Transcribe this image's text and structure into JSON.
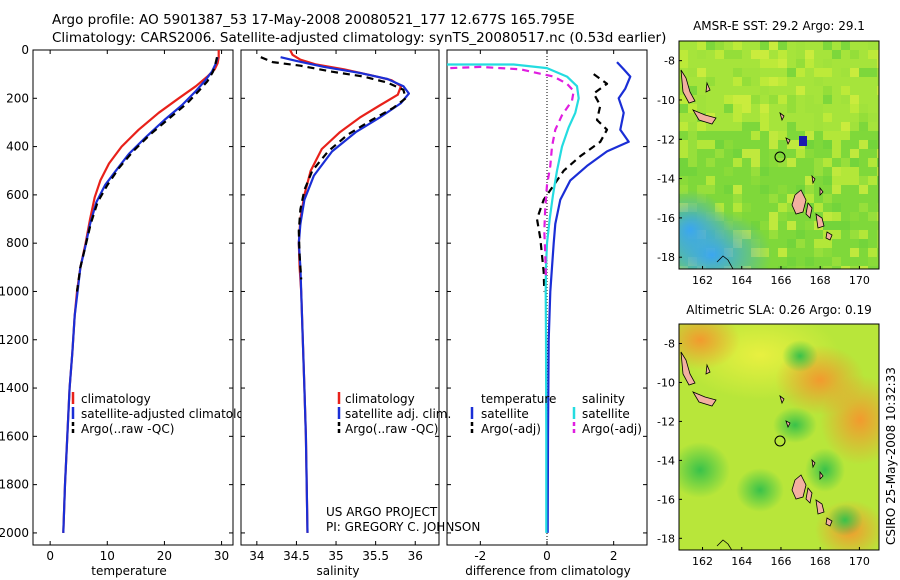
{
  "header": {
    "line1": "Argo profile: AO 5901387_53 17-May-2008 20080521_177 12.677S 165.795E",
    "line2": "Climatology: CARS2006. Satellite-adjusted climatology: synTS_20080517.nc (0.53d earlier)"
  },
  "chart_data": [
    {
      "type": "line",
      "title": "",
      "xlabel": "temperature",
      "ylabel": "",
      "xlim": [
        -3,
        32
      ],
      "ylim": [
        2050,
        0
      ],
      "xticks": [
        0,
        10,
        20,
        30
      ],
      "yticks": [
        0,
        200,
        400,
        600,
        800,
        1000,
        1200,
        1400,
        1600,
        1800,
        2000
      ],
      "legend": [
        "climatology",
        "satellite-adjusted climatology",
        "Argo(..raw -QC)"
      ],
      "series": [
        {
          "name": "climatology",
          "color": "#e8211a",
          "dash": "",
          "points": [
            [
              29.5,
              0
            ],
            [
              29.5,
              30
            ],
            [
              29.3,
              55
            ],
            [
              28.8,
              80
            ],
            [
              27.5,
              110
            ],
            [
              25.5,
              150
            ],
            [
              22.5,
              200
            ],
            [
              19,
              260
            ],
            [
              15.5,
              330
            ],
            [
              12.5,
              400
            ],
            [
              10.3,
              470
            ],
            [
              8.8,
              540
            ],
            [
              7.8,
              610
            ],
            [
              7,
              700
            ],
            [
              6.2,
              800
            ],
            [
              5.3,
              900
            ],
            [
              4.7,
              1000
            ],
            [
              4.3,
              1100
            ],
            [
              3.9,
              1250
            ],
            [
              3.4,
              1400
            ],
            [
              3.0,
              1600
            ],
            [
              2.6,
              1800
            ],
            [
              2.3,
              2000
            ]
          ]
        },
        {
          "name": "satellite-adjusted climatology",
          "color": "#1a2ed6",
          "dash": "",
          "points": [
            [
              29.3,
              30
            ],
            [
              29.0,
              55
            ],
            [
              28.3,
              90
            ],
            [
              27,
              130
            ],
            [
              25.5,
              170
            ],
            [
              23,
              230
            ],
            [
              20,
              290
            ],
            [
              16.8,
              360
            ],
            [
              13.8,
              430
            ],
            [
              11.5,
              500
            ],
            [
              9.6,
              560
            ],
            [
              8.1,
              630
            ],
            [
              7,
              720
            ],
            [
              6.1,
              820
            ],
            [
              5.3,
              900
            ],
            [
              4.8,
              1000
            ],
            [
              4.3,
              1100
            ],
            [
              3.9,
              1250
            ],
            [
              3.4,
              1400
            ],
            [
              3.0,
              1600
            ],
            [
              2.6,
              1800
            ],
            [
              2.3,
              2000
            ]
          ]
        },
        {
          "name": "Argo(..raw -QC)",
          "color": "#000000",
          "dash": "7,5",
          "points": [
            [
              29.2,
              30
            ],
            [
              28.9,
              60
            ],
            [
              28.5,
              90
            ],
            [
              27.5,
              130
            ],
            [
              26,
              170
            ],
            [
              24,
              220
            ],
            [
              21,
              280
            ],
            [
              17.5,
              350
            ],
            [
              14.5,
              420
            ],
            [
              12,
              490
            ],
            [
              10,
              560
            ],
            [
              8.3,
              630
            ],
            [
              7.1,
              720
            ],
            [
              6.1,
              820
            ],
            [
              5.3,
              900
            ],
            [
              4.7,
              1000
            ]
          ]
        }
      ]
    },
    {
      "type": "line",
      "title": "",
      "xlabel": "salinity",
      "ylabel": "",
      "xlim": [
        33.8,
        36.3
      ],
      "ylim": [
        2050,
        0
      ],
      "xticks": [
        34,
        34.5,
        35,
        35.5,
        36
      ],
      "xtick_labels": [
        "34",
        "34.5",
        "35",
        "35.5",
        "36"
      ],
      "legend": [
        "climatology",
        "satellite adj. clim.",
        "Argo(..raw -QC)"
      ],
      "series": [
        {
          "name": "climatology",
          "color": "#e8211a",
          "dash": "",
          "points": [
            [
              34.42,
              0
            ],
            [
              34.45,
              20
            ],
            [
              34.55,
              40
            ],
            [
              34.75,
              60
            ],
            [
              35.1,
              80
            ],
            [
              35.45,
              105
            ],
            [
              35.7,
              125
            ],
            [
              35.82,
              150
            ],
            [
              35.78,
              185
            ],
            [
              35.55,
              230
            ],
            [
              35.3,
              280
            ],
            [
              35.05,
              340
            ],
            [
              34.82,
              410
            ],
            [
              34.68,
              500
            ],
            [
              34.6,
              600
            ],
            [
              34.55,
              700
            ],
            [
              34.53,
              800
            ],
            [
              34.54,
              900
            ],
            [
              34.56,
              1000
            ],
            [
              34.58,
              1200
            ],
            [
              34.6,
              1400
            ],
            [
              34.62,
              1600
            ],
            [
              34.63,
              1800
            ],
            [
              34.64,
              2000
            ]
          ]
        },
        {
          "name": "satellite adj. clim.",
          "color": "#1a2ed6",
          "dash": "",
          "points": [
            [
              34.3,
              30
            ],
            [
              34.5,
              45
            ],
            [
              34.85,
              70
            ],
            [
              35.3,
              95
            ],
            [
              35.65,
              120
            ],
            [
              35.85,
              150
            ],
            [
              35.92,
              180
            ],
            [
              35.82,
              220
            ],
            [
              35.55,
              280
            ],
            [
              35.25,
              340
            ],
            [
              34.95,
              420
            ],
            [
              34.72,
              520
            ],
            [
              34.6,
              620
            ],
            [
              34.55,
              720
            ],
            [
              34.53,
              800
            ],
            [
              34.55,
              900
            ],
            [
              34.56,
              1000
            ],
            [
              34.58,
              1200
            ],
            [
              34.6,
              1400
            ],
            [
              34.62,
              1600
            ],
            [
              34.63,
              1800
            ],
            [
              34.64,
              2000
            ]
          ]
        },
        {
          "name": "Argo(..raw -QC)",
          "color": "#000000",
          "dash": "7,5",
          "points": [
            [
              34.05,
              30
            ],
            [
              34.2,
              50
            ],
            [
              34.55,
              65
            ],
            [
              34.95,
              90
            ],
            [
              35.35,
              110
            ],
            [
              35.65,
              135
            ],
            [
              35.85,
              165
            ],
            [
              35.88,
              200
            ],
            [
              35.72,
              240
            ],
            [
              35.45,
              290
            ],
            [
              35.15,
              350
            ],
            [
              34.9,
              420
            ],
            [
              34.7,
              500
            ],
            [
              34.6,
              580
            ],
            [
              34.55,
              660
            ],
            [
              34.53,
              750
            ],
            [
              34.54,
              850
            ],
            [
              34.56,
              950
            ]
          ]
        }
      ]
    },
    {
      "type": "line",
      "title": "",
      "xlabel": "difference from climatology",
      "ylabel": "",
      "xlim": [
        -3.0,
        3.0
      ],
      "ylim": [
        2050,
        0
      ],
      "xticks": [
        -2,
        0,
        2
      ],
      "legend_temperature_title": "temperature",
      "legend_salinity_title": "salinity",
      "legend": [
        "satellite",
        "Argo(-adj)",
        "satellite",
        "Argo(-adj)"
      ],
      "series": [
        {
          "name": "temperature satellite",
          "color": "#1a2ed6",
          "dash": "",
          "points": [
            [
              2.1,
              50
            ],
            [
              2.3,
              80
            ],
            [
              2.5,
              110
            ],
            [
              2.35,
              160
            ],
            [
              2.15,
              200
            ],
            [
              2.3,
              260
            ],
            [
              2.2,
              330
            ],
            [
              2.45,
              380
            ],
            [
              1.8,
              420
            ],
            [
              1.2,
              480
            ],
            [
              0.7,
              540
            ],
            [
              0.4,
              620
            ],
            [
              0.25,
              720
            ],
            [
              0.2,
              800
            ],
            [
              0.15,
              900
            ],
            [
              0.1,
              1000
            ],
            [
              0.05,
              1200
            ],
            [
              0.03,
              1600
            ],
            [
              0.02,
              2000
            ]
          ]
        },
        {
          "name": "temperature Argo(-adj)",
          "color": "#000000",
          "dash": "7,5",
          "points": [
            [
              1.4,
              100
            ],
            [
              1.8,
              140
            ],
            [
              1.4,
              180
            ],
            [
              1.6,
              230
            ],
            [
              1.5,
              290
            ],
            [
              1.8,
              330
            ],
            [
              1.6,
              380
            ],
            [
              1.0,
              440
            ],
            [
              0.5,
              500
            ],
            [
              0.2,
              560
            ],
            [
              -0.1,
              620
            ],
            [
              -0.3,
              700
            ],
            [
              -0.2,
              780
            ],
            [
              -0.15,
              850
            ],
            [
              -0.1,
              920
            ],
            [
              -0.08,
              1000
            ]
          ]
        },
        {
          "name": "salinity satellite",
          "color": "#24dce0",
          "dash": "",
          "points": [
            [
              -3.0,
              60
            ],
            [
              -1.0,
              60
            ],
            [
              0.0,
              75
            ],
            [
              0.6,
              110
            ],
            [
              0.9,
              150
            ],
            [
              0.95,
              200
            ],
            [
              0.85,
              260
            ],
            [
              0.65,
              320
            ],
            [
              0.45,
              400
            ],
            [
              0.3,
              500
            ],
            [
              0.18,
              600
            ],
            [
              0.08,
              700
            ],
            [
              0.0,
              800
            ],
            [
              -0.03,
              900
            ],
            [
              -0.04,
              1000
            ],
            [
              -0.03,
              1200
            ],
            [
              -0.02,
              1600
            ],
            [
              -0.02,
              2000
            ]
          ]
        },
        {
          "name": "salinity Argo(-adj)",
          "color": "#e01ee0",
          "dash": "7,5",
          "points": [
            [
              -2.9,
              75
            ],
            [
              -2.0,
              70
            ],
            [
              -0.8,
              80
            ],
            [
              0.2,
              110
            ],
            [
              0.6,
              140
            ],
            [
              0.8,
              170
            ],
            [
              0.75,
              210
            ],
            [
              0.45,
              270
            ],
            [
              0.25,
              330
            ],
            [
              0.15,
              400
            ],
            [
              0.1,
              480
            ],
            [
              0.0,
              560
            ],
            [
              -0.05,
              650
            ],
            [
              -0.08,
              750
            ],
            [
              -0.05,
              850
            ],
            [
              -0.03,
              950
            ]
          ]
        }
      ]
    }
  ],
  "labels": {
    "project_line1": "US ARGO PROJECT",
    "project_line2": "PI: GREGORY C. JOHNSON",
    "map_top_title": "AMSR-E SST: 29.2 Argo: 29.1",
    "map_bottom_title": "Altimetric SLA: 0.26 Argo: 0.19",
    "side_stamp": "CSIRO 25-May-2008 10:32:33"
  },
  "maps": {
    "lat_ticks": [
      "-8",
      "-10",
      "-12",
      "-14",
      "-16",
      "-18"
    ],
    "lon_ticks": [
      "162",
      "164",
      "166",
      "168",
      "170"
    ]
  }
}
